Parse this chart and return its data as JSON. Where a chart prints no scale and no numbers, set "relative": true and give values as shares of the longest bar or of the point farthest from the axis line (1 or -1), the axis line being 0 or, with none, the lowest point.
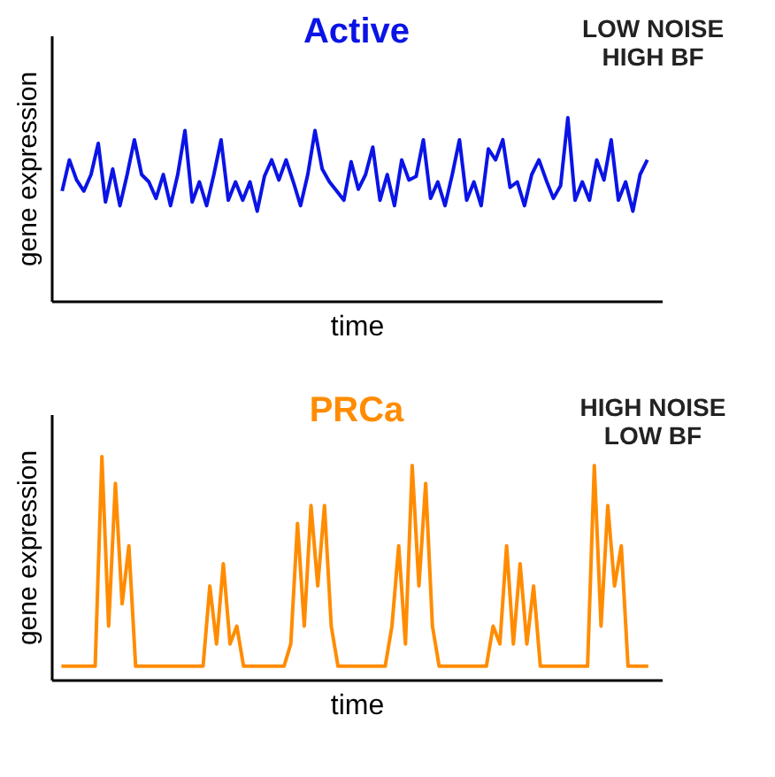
{
  "chart_data": [
    {
      "type": "line",
      "title": "Active",
      "xlabel": "time",
      "ylabel": "gene expression",
      "annotations": [
        "LOW NOISE\nHIGH BF"
      ],
      "relative": true,
      "tick_labels": false,
      "grid": false,
      "categories": [
        null,
        null,
        null,
        null,
        null,
        null,
        null,
        null,
        null,
        null,
        null,
        null,
        null,
        null,
        null,
        null,
        null,
        null,
        null,
        null,
        null,
        null,
        null,
        null,
        null,
        null,
        null,
        null,
        null,
        null,
        null,
        null,
        null,
        null,
        null,
        null,
        null,
        null,
        null,
        null,
        null,
        null,
        null,
        null,
        null,
        null,
        null,
        null,
        null,
        null,
        null,
        null,
        null,
        null,
        null,
        null,
        null,
        null,
        null,
        null,
        null,
        null,
        null,
        null,
        null,
        null,
        null,
        null,
        null,
        null,
        null,
        null,
        null,
        null,
        null,
        null,
        null,
        null,
        null,
        null,
        null,
        null
      ],
      "series": [
        {
          "color": "#0a14e6",
          "values": [
            0.6,
            0.77,
            0.66,
            0.6,
            0.69,
            0.86,
            0.54,
            0.72,
            0.52,
            0.69,
            0.88,
            0.69,
            0.65,
            0.56,
            0.69,
            0.52,
            0.69,
            0.93,
            0.54,
            0.65,
            0.52,
            0.69,
            0.88,
            0.55,
            0.65,
            0.55,
            0.65,
            0.49,
            0.68,
            0.77,
            0.66,
            0.77,
            0.65,
            0.52,
            0.69,
            0.93,
            0.72,
            0.65,
            0.6,
            0.55,
            0.76,
            0.61,
            0.69,
            0.84,
            0.55,
            0.69,
            0.52,
            0.77,
            0.66,
            0.68,
            0.88,
            0.56,
            0.65,
            0.52,
            0.69,
            0.88,
            0.55,
            0.65,
            0.52,
            0.83,
            0.77,
            0.88,
            0.62,
            0.65,
            0.52,
            0.69,
            0.77,
            0.66,
            0.56,
            0.63,
            1,
            0.55,
            0.65,
            0.55,
            0.77,
            0.66,
            0.88,
            0.55,
            0.65,
            0.49,
            0.69,
            0.77
          ]
        }
      ]
    },
    {
      "type": "line",
      "title": "PRCa",
      "xlabel": "time",
      "ylabel": "gene expression",
      "annotations": [
        "HIGH NOISE\nLOW BF"
      ],
      "relative": true,
      "tick_labels": false,
      "grid": false,
      "categories": [
        null,
        null,
        null,
        null,
        null,
        null,
        null,
        null,
        null,
        null,
        null,
        null,
        null,
        null,
        null,
        null,
        null,
        null,
        null,
        null,
        null,
        null,
        null,
        null,
        null,
        null,
        null,
        null,
        null,
        null,
        null,
        null,
        null,
        null,
        null,
        null,
        null,
        null,
        null,
        null,
        null,
        null,
        null,
        null,
        null,
        null,
        null,
        null,
        null,
        null,
        null,
        null,
        null,
        null,
        null,
        null,
        null,
        null,
        null,
        null,
        null,
        null,
        null,
        null,
        null,
        null,
        null,
        null,
        null,
        null,
        null,
        null,
        null,
        null,
        null,
        null,
        null,
        null,
        null,
        null,
        null,
        null,
        null,
        null,
        null,
        null,
        null,
        null
      ],
      "series": [
        {
          "color": "#ff8c00",
          "values": [
            0.06,
            0.06,
            0.06,
            0.06,
            0.06,
            0.06,
            1,
            0.24,
            0.88,
            0.34,
            0.6,
            0.06,
            0.06,
            0.06,
            0.06,
            0.06,
            0.06,
            0.06,
            0.06,
            0.06,
            0.06,
            0.06,
            0.42,
            0.16,
            0.52,
            0.16,
            0.24,
            0.06,
            0.06,
            0.06,
            0.06,
            0.06,
            0.06,
            0.06,
            0.16,
            0.7,
            0.24,
            0.78,
            0.42,
            0.78,
            0.24,
            0.06,
            0.06,
            0.06,
            0.06,
            0.06,
            0.06,
            0.06,
            0.06,
            0.24,
            0.6,
            0.16,
            0.96,
            0.42,
            0.88,
            0.24,
            0.06,
            0.06,
            0.06,
            0.06,
            0.06,
            0.06,
            0.06,
            0.06,
            0.24,
            0.16,
            0.6,
            0.16,
            0.52,
            0.16,
            0.42,
            0.06,
            0.06,
            0.06,
            0.06,
            0.06,
            0.06,
            0.06,
            0.06,
            0.96,
            0.24,
            0.78,
            0.42,
            0.6,
            0.06,
            0.06,
            0.06,
            0.06
          ]
        }
      ]
    }
  ]
}
